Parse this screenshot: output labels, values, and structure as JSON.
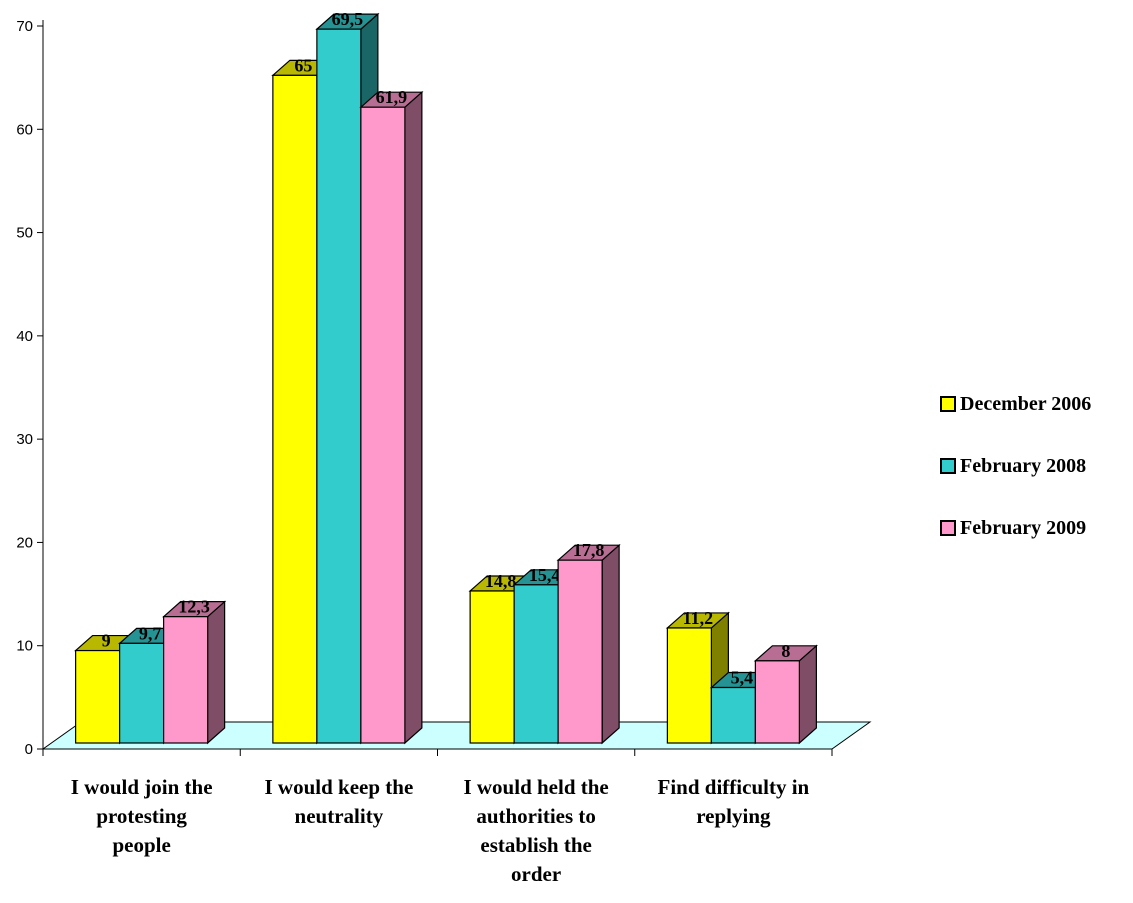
{
  "chart_data": {
    "type": "bar",
    "title": "",
    "xlabel": "",
    "ylabel": "",
    "ylim": [
      0,
      70
    ],
    "yticks": [
      0,
      10,
      20,
      30,
      40,
      50,
      60,
      70
    ],
    "grid": false,
    "three_d": true,
    "legend_position": "right",
    "floor_color": "#ccffff",
    "categories": [
      [
        "I would join the",
        "protesting",
        "people"
      ],
      [
        "I would keep the",
        "neutrality"
      ],
      [
        "I would held the",
        "authorities to",
        "establish the",
        "order"
      ],
      [
        "Find difficulty in",
        "replying"
      ]
    ],
    "series": [
      {
        "name": "December 2006",
        "color": "#ffff00",
        "values": [
          9,
          65,
          14.8,
          11.2
        ],
        "labels": [
          "9",
          "65",
          "14,8",
          "11,2"
        ]
      },
      {
        "name": "February 2008",
        "color": "#33cccc",
        "values": [
          9.7,
          69.5,
          15.4,
          5.4
        ],
        "labels": [
          "9,7",
          "69,5",
          "15,4",
          "5,4"
        ]
      },
      {
        "name": "February 2009",
        "color": "#ff99cc",
        "values": [
          12.3,
          61.9,
          17.8,
          8
        ],
        "labels": [
          "12,3",
          "61,9",
          "17,8",
          "8"
        ]
      }
    ]
  }
}
